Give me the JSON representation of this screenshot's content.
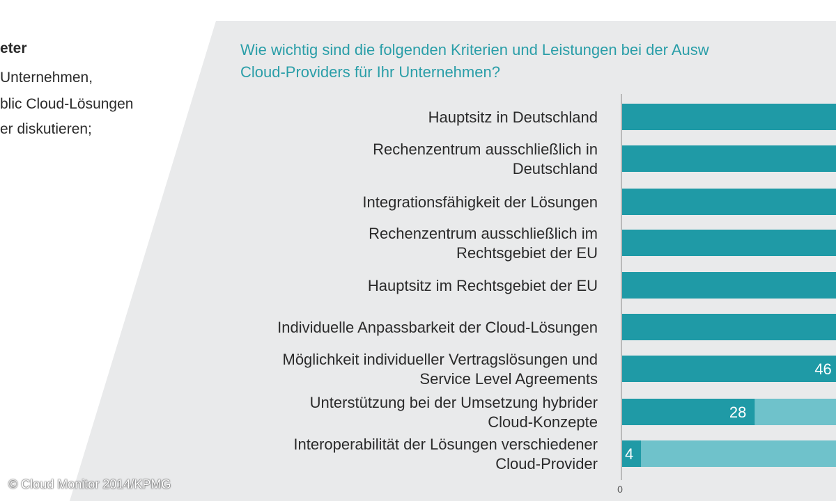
{
  "side_text": {
    "title": "eter",
    "line1": "Unternehmen,",
    "line2": "blic Cloud-Lösungen",
    "line3": "er diskutieren;"
  },
  "chart_data": {
    "type": "bar",
    "orientation": "horizontal",
    "title_lines": [
      "Wie wichtig sind die folgenden Kriterien und Leistungen bei der Ausw",
      "Cloud-Providers für Ihr Unternehmen?"
    ],
    "categories": [
      [
        "Hauptsitz in Deutschland"
      ],
      [
        "Rechenzentrum ausschließlich in",
        "Deutschland"
      ],
      [
        "Integrationsfähigkeit der Lösungen"
      ],
      [
        "Rechenzentrum ausschließlich im",
        "Rechtsgebiet der EU"
      ],
      [
        "Hauptsitz im Rechtsgebiet der EU"
      ],
      [
        "Individuelle Anpassbarkeit der Cloud-Lösungen"
      ],
      [
        "Möglichkeit individueller Vertragslösungen und",
        "Service Level Agreements"
      ],
      [
        "Unterstützung bei der Umsetzung hybrider",
        "Cloud-Konzepte"
      ],
      [
        "Interoperabilität der Lösungen verschiedener",
        "Cloud-Provider"
      ]
    ],
    "series": [
      {
        "color": "#1f9aa6",
        "values": [
          null,
          null,
          null,
          null,
          null,
          null,
          46,
          28,
          4
        ],
        "labels": [
          "",
          "",
          "",
          "",
          "",
          "",
          "46",
          "28",
          "4"
        ]
      },
      {
        "color": "#6fc2cb",
        "values": [
          null,
          null,
          null,
          null,
          null,
          null,
          null,
          null,
          null
        ]
      }
    ],
    "x_tick_labels": [
      "0"
    ],
    "colors": {
      "panel": "#e9eaeb",
      "strong": "#1f9aa6",
      "light": "#6fc2cb",
      "question": "#2a9ea8"
    }
  },
  "source": "© Cloud Monitor 2014/KPMG"
}
